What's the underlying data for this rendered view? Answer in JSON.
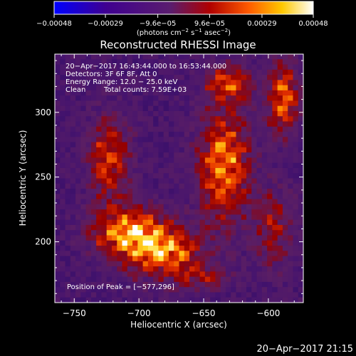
{
  "colorbar": {
    "ticks": [
      "−0.00048",
      "−0.00029",
      "−9.6e−05",
      "9.6e−05",
      "0.00029",
      "0.00048"
    ],
    "tick_values": [
      -0.00048,
      -0.00029,
      -9.6e-05,
      9.6e-05,
      0.00029,
      0.00048
    ],
    "range": [
      -0.00048,
      0.00048
    ],
    "units_prefix": "(photons cm",
    "units_exp1": "−2",
    "units_mid": " s",
    "units_exp2": "−1",
    "units_mid2": " asec",
    "units_exp3": "−2",
    "units_suffix": ")",
    "colors": [
      "#0000ff",
      "#3f0090",
      "#5a1d6e",
      "#b00000",
      "#ff5a00",
      "#ffc800",
      "#ffffff"
    ]
  },
  "chart_data": {
    "type": "heatmap",
    "title": "Reconstructed RHESSI Image",
    "xlabel": "Heliocentric X (arcsec)",
    "ylabel": "Heliocentric Y (arcsec)",
    "xlim": [
      -765,
      -573
    ],
    "ylim": [
      153,
      345
    ],
    "x_ticks": [
      {
        "value": -750,
        "label": "−750"
      },
      {
        "value": -700,
        "label": "−700"
      },
      {
        "value": -650,
        "label": "−650"
      },
      {
        "value": -600,
        "label": "−600"
      }
    ],
    "y_ticks": [
      {
        "value": 200,
        "label": "200"
      },
      {
        "value": 250,
        "label": "250"
      },
      {
        "value": 300,
        "label": "300"
      }
    ],
    "grid_size": 48,
    "peak": [
      -577,
      296
    ],
    "colormap": "rhessi red-temperature"
  },
  "annotations": {
    "time_range": "20−Apr−2017 16:43:44.000 to 16:53:44.000",
    "detectors": "Detectors: 3F 6F 8F, Att 0",
    "energy": "Energy Range: 12.0 − 25.0 keV",
    "method": "Clean",
    "total_counts": "Total counts: 7.59E+03",
    "peak_position": "Position of Peak = [−577,296]"
  },
  "footer": {
    "timestamp": "20−Apr−2017 21:15"
  }
}
